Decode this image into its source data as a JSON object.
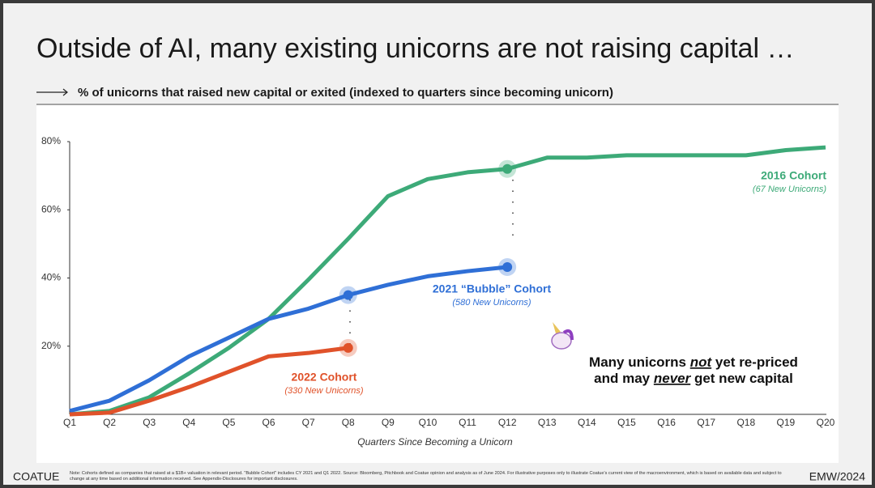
{
  "header": {
    "title": "Outside of AI, many existing unicorns are not raising capital …",
    "subtitle": "% of unicorns that raised new capital or exited (indexed to quarters since becoming unicorn)"
  },
  "chart_data": {
    "type": "line",
    "categories": [
      "Q1",
      "Q2",
      "Q3",
      "Q4",
      "Q5",
      "Q6",
      "Q7",
      "Q8",
      "Q9",
      "Q10",
      "Q11",
      "Q12",
      "Q13",
      "Q14",
      "Q15",
      "Q16",
      "Q17",
      "Q18",
      "Q19",
      "Q20"
    ],
    "x_label": "Quarters Since Becoming a Unicorn",
    "ylim": [
      0,
      80
    ],
    "yticks": [
      {
        "value": 20,
        "label": "20%"
      },
      {
        "value": 40,
        "label": "40%"
      },
      {
        "value": 60,
        "label": "60%"
      },
      {
        "value": 80,
        "label": "80%"
      }
    ],
    "series": [
      {
        "name": "2016 Cohort",
        "note": "(67 New Unicorns)",
        "color": "#3daa78",
        "highlight": [
          11
        ],
        "values": [
          0,
          1,
          5,
          12,
          19.5,
          28,
          39.5,
          51.5,
          64,
          69,
          71,
          72,
          75.3,
          75.3,
          76,
          76,
          76,
          76,
          77.5,
          78.3
        ]
      },
      {
        "name": "2021 “Bubble” Cohort",
        "note": "(580 New Unicorns)",
        "color": "#2f6fd6",
        "highlight": [
          7,
          11
        ],
        "values": [
          1,
          4,
          10,
          17,
          22.5,
          28,
          31,
          35,
          38,
          40.5,
          42,
          43.2,
          null,
          null,
          null,
          null,
          null,
          null,
          null,
          null
        ]
      },
      {
        "name": "2022 Cohort",
        "note": "(330 New Unicorns)",
        "color": "#e0522a",
        "highlight": [
          7
        ],
        "values": [
          0,
          0.5,
          4,
          8,
          12.5,
          17,
          18,
          19.5,
          null,
          null,
          null,
          null,
          null,
          null,
          null,
          null,
          null,
          null,
          null,
          null
        ]
      }
    ]
  },
  "callout": {
    "line1": [
      "Many unicorns ",
      "not",
      " yet re-priced"
    ],
    "line2": [
      "and may ",
      "never",
      " get new capital"
    ]
  },
  "footer": {
    "brand": "COATUE",
    "note": "Note: Cohorts defined as companies that raised at a $1B+ valuation in relevant period. \"Bubble Cohort\" includes CY 2021 and Q1 2022. Source: Bloomberg, Pitchbook and Coatue opinion and analysis as of June 2024. For illustrative purposes only to illustrate Coatue's current view of the macroenvironment, which is based on available data and subject to change at any time based on additional information received. See Appendix-Disclosures for important disclosures.",
    "event": "EMW/2024"
  }
}
